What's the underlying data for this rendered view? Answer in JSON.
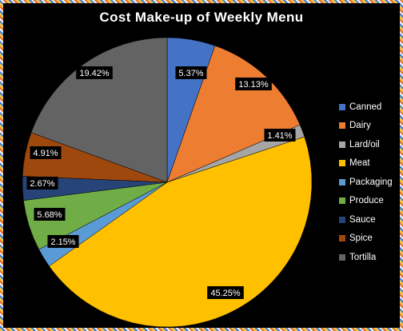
{
  "chart_data": {
    "type": "pie",
    "title": "Cost Make-up of Weekly Menu",
    "slices": [
      {
        "label": "Canned",
        "value": 5.37,
        "display": "5.37%",
        "color": "#4472c4"
      },
      {
        "label": "Dairy",
        "value": 13.13,
        "display": "13.13%",
        "color": "#ed7d31"
      },
      {
        "label": "Lard/oil",
        "value": 1.41,
        "display": "1.41%",
        "color": "#a5a5a5"
      },
      {
        "label": "Meat",
        "value": 45.25,
        "display": "45.25%",
        "color": "#ffc000"
      },
      {
        "label": "Packaging",
        "value": 2.15,
        "display": "2.15%",
        "color": "#5b9bd5"
      },
      {
        "label": "Produce",
        "value": 5.68,
        "display": "5.68%",
        "color": "#70ad47"
      },
      {
        "label": "Sauce",
        "value": 2.67,
        "display": "2.67%",
        "color": "#264478"
      },
      {
        "label": "Spice",
        "value": 4.91,
        "display": "4.91%",
        "color": "#9e480e"
      },
      {
        "label": "Tortilla",
        "value": 19.42,
        "display": "19.42%",
        "color": "#636363"
      }
    ],
    "legend_position": "right",
    "background": "#000000"
  }
}
